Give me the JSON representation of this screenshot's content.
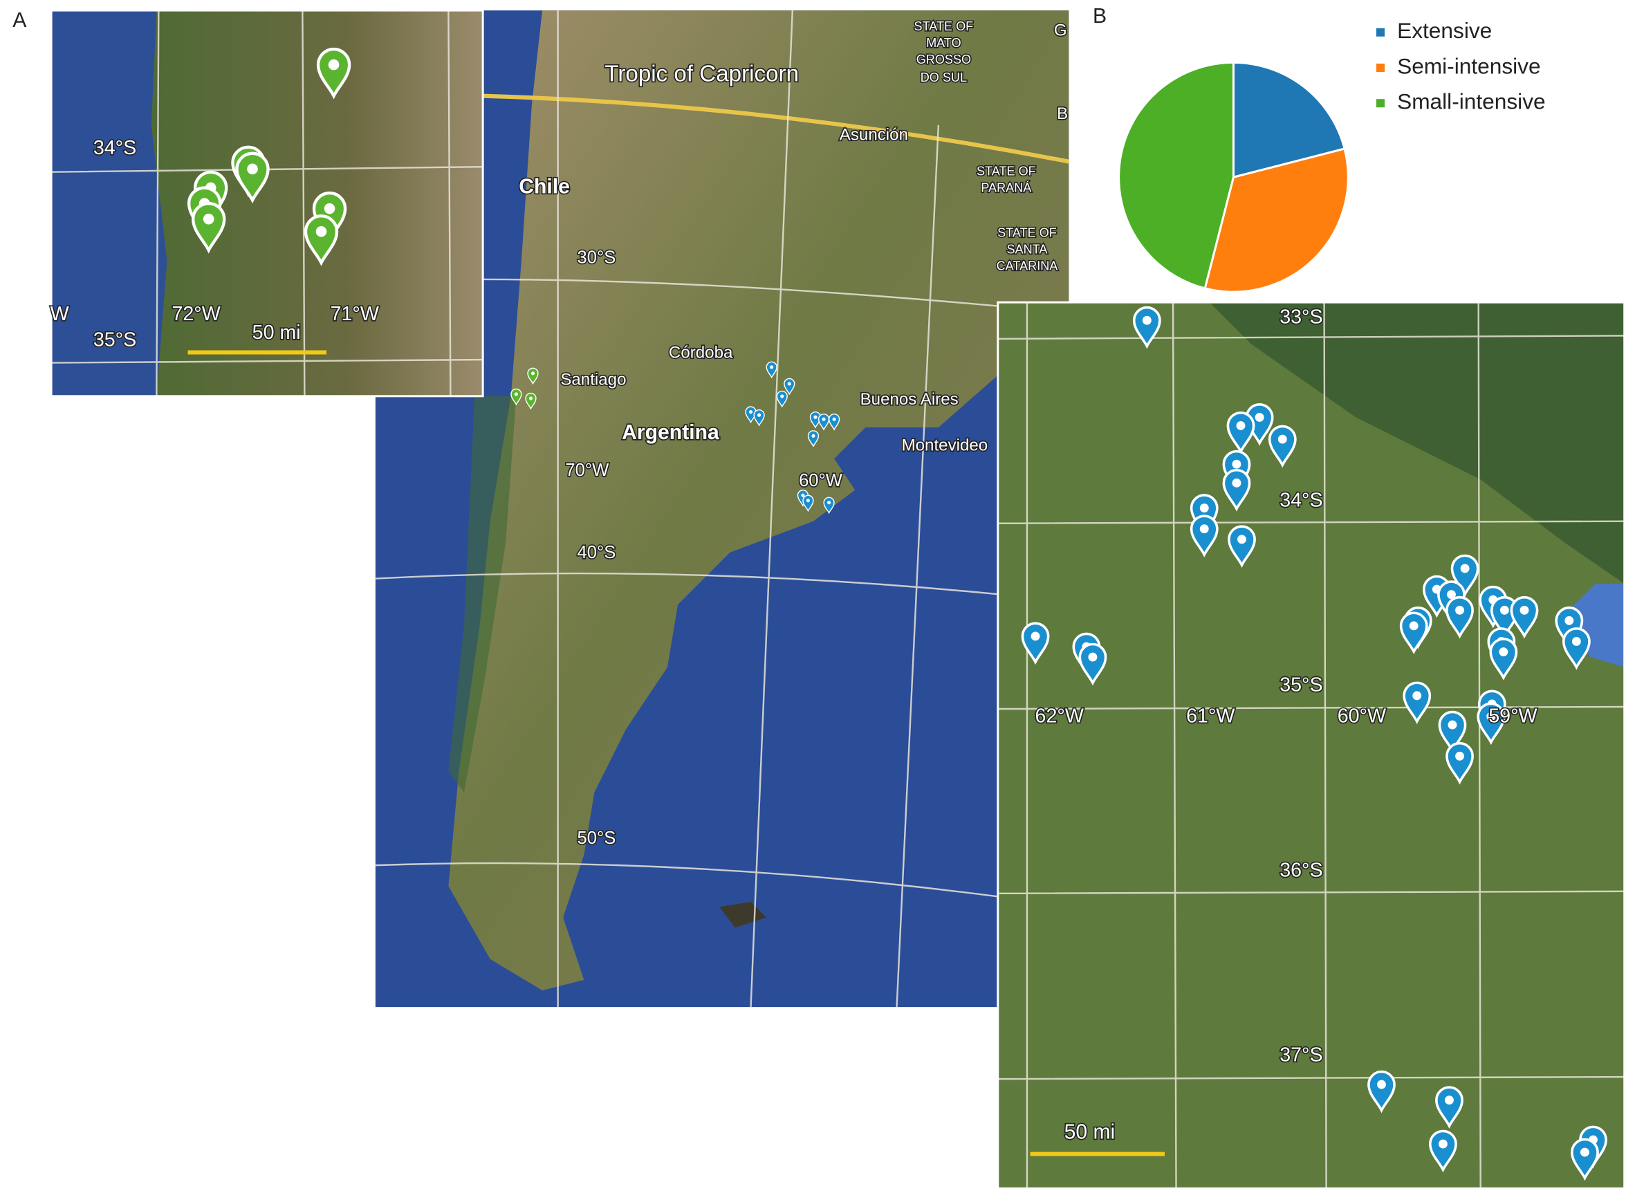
{
  "panel_labels": [
    "A",
    "B"
  ],
  "main_map": {
    "labels": [
      "Tropic of Capricorn",
      "STATE OF",
      "MATO",
      "GROSSO",
      "DO SUL",
      "Asunción",
      "STATE OF",
      "PARANÁ",
      "STATE OF",
      "SANTA",
      "CATARINA",
      "Chile",
      "30°S",
      "Córdoba",
      "Santiago",
      "Argentina",
      "Buenos Aires",
      "Montevideo",
      "70°W",
      "60°W",
      "40°S",
      "50°S",
      "G",
      "B"
    ]
  },
  "inset_chile": {
    "labels": [
      "34°S",
      "72°W",
      "71°W",
      "35°S",
      "50 mi",
      "W"
    ]
  },
  "inset_argentina": {
    "labels": [
      "33°S",
      "34°S",
      "35°S",
      "36°S",
      "37°S",
      "62°W",
      "61°W",
      "60°W",
      "59°W",
      "50 mi"
    ]
  },
  "chart_data": {
    "type": "pie",
    "categories": [
      "Extensive",
      "Semi-intensive",
      "Small-intensive"
    ],
    "values": [
      21,
      33,
      46
    ],
    "colors": [
      "#1f77b4",
      "#ff7f0e",
      "#4caf26"
    ],
    "legend": "right"
  }
}
